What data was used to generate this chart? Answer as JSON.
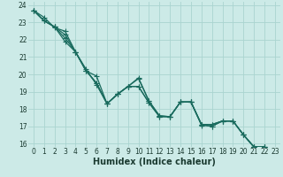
{
  "xlabel": "Humidex (Indice chaleur)",
  "bg_color": "#cceae7",
  "grid_color": "#aad4d0",
  "line_color": "#1a6b5e",
  "xlim": [
    -0.5,
    23.5
  ],
  "ylim": [
    15.8,
    24.2
  ],
  "xticks": [
    0,
    1,
    2,
    3,
    4,
    5,
    6,
    7,
    8,
    9,
    10,
    11,
    12,
    13,
    14,
    15,
    16,
    17,
    18,
    19,
    20,
    21,
    22,
    23
  ],
  "yticks": [
    16,
    17,
    18,
    19,
    20,
    21,
    22,
    23,
    24
  ],
  "series1": [
    23.7,
    23.3,
    22.7,
    22.5,
    21.3,
    20.3,
    19.4,
    18.3,
    18.85,
    19.3,
    19.8,
    18.45,
    17.6,
    17.55,
    18.4,
    18.4,
    17.1,
    17.1,
    17.3,
    17.3,
    16.5,
    15.8,
    15.8
  ],
  "series2": [
    23.7,
    23.1,
    22.75,
    22.3,
    21.3,
    20.2,
    19.5,
    18.3,
    18.85,
    19.3,
    19.75,
    18.45,
    17.6,
    17.55,
    18.4,
    18.4,
    17.1,
    17.1,
    17.3,
    17.3,
    16.5,
    15.8,
    15.8
  ],
  "series3": [
    23.7,
    23.1,
    22.75,
    22.1,
    21.3,
    20.2,
    19.5,
    18.3,
    18.85,
    19.3,
    19.3,
    18.35,
    17.55,
    17.55,
    18.4,
    18.4,
    17.1,
    17.0,
    17.3,
    17.3,
    16.5,
    15.8,
    15.8
  ],
  "series4": [
    23.7,
    23.1,
    22.75,
    21.9,
    21.3,
    20.2,
    19.9,
    18.3,
    18.85,
    19.3,
    19.3,
    18.35,
    17.55,
    17.55,
    18.4,
    18.4,
    17.05,
    17.0,
    17.3,
    17.3,
    16.5,
    15.8,
    15.8
  ],
  "marker": "+",
  "markersize": 4,
  "linewidth": 0.9,
  "font_color": "#1a3a30",
  "tick_fontsize": 5.5,
  "label_fontsize": 7
}
